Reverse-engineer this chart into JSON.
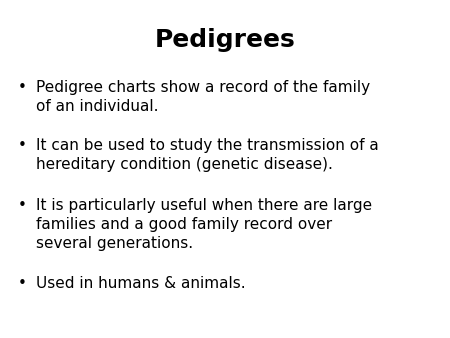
{
  "title": "Pedigrees",
  "title_fontsize": 18,
  "title_fontweight": "bold",
  "bullet_points": [
    "Pedigree charts show a record of the family\nof an individual.",
    "It can be used to study the transmission of a\nhereditary condition (genetic disease).",
    "It is particularly useful when there are large\nfamilies and a good family record over\nseveral generations.",
    "Used in humans & animals."
  ],
  "bullet_fontsize": 11,
  "background_color": "#ffffff",
  "text_color": "#000000",
  "bullet_char": "•",
  "font_family": "DejaVu Sans"
}
